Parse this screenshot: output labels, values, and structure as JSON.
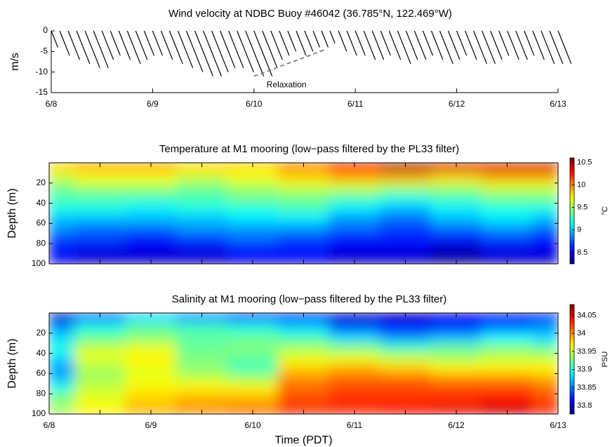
{
  "chart_data": [
    {
      "type": "stick",
      "title": "Wind velocity at NDBC Buoy #46042 (36.785°N, 122.469°W)",
      "ylabel": "m/s",
      "x": [
        0,
        2,
        4,
        6,
        8,
        10,
        12,
        14,
        16,
        18,
        20,
        22,
        24,
        26,
        28,
        30,
        32,
        34,
        36,
        38,
        40,
        42,
        44,
        46,
        48,
        50,
        52,
        54,
        56,
        58,
        60,
        62,
        64,
        66,
        68,
        70,
        72,
        74,
        76,
        78,
        80,
        82,
        84,
        86,
        88,
        90,
        92,
        94,
        96,
        98,
        100,
        102,
        104,
        106,
        108,
        110,
        112,
        114,
        116,
        118,
        120
      ],
      "u": [
        1.6,
        2.4,
        2.8,
        3.2,
        3.6,
        3.6,
        2.8,
        2.4,
        2.8,
        3.2,
        2.8,
        2.4,
        2.4,
        2.8,
        3.2,
        3.6,
        4,
        4.4,
        4.4,
        4,
        3.6,
        3.6,
        4,
        4.4,
        4.4,
        3.6,
        2.8,
        2.4,
        2,
        2.4,
        2,
        1.6,
        1.6,
        1.2,
        2,
        2.4,
        2.4,
        2.8,
        2.8,
        2.4,
        2.8,
        3.2,
        2.8,
        2.8,
        2.4,
        2.8,
        3.2,
        2.8,
        2.4,
        2.8,
        3.2,
        3.2,
        2.8,
        2.4,
        2.8,
        2.8,
        2.4,
        2.8,
        3.2,
        3.2,
        3.2
      ],
      "v": [
        -4,
        -6,
        -7,
        -8,
        -9,
        -9,
        -7,
        -6,
        -7,
        -8,
        -7,
        -6,
        -6,
        -7,
        -8,
        -9,
        -10,
        -11,
        -11,
        -10,
        -9,
        -9,
        -10,
        -11,
        -11,
        -9,
        -7,
        -6,
        -5,
        -6,
        -5,
        -4,
        -4,
        -3,
        -5,
        -6,
        -6,
        -7,
        -7,
        -6,
        -7,
        -8,
        -7,
        -7,
        -6,
        -7,
        -8,
        -7,
        -6,
        -7,
        -8,
        -8,
        -7,
        -6,
        -7,
        -7,
        -6,
        -7,
        -8,
        -8,
        -8
      ],
      "color": "#000000",
      "xlim": [
        0,
        120
      ],
      "ylim": [
        -15,
        0
      ],
      "xticks": [
        {
          "value": 0,
          "label": "6/8"
        },
        {
          "value": 24,
          "label": "6/9"
        },
        {
          "value": 48,
          "label": "6/10"
        },
        {
          "value": 72,
          "label": "6/11"
        },
        {
          "value": 96,
          "label": "6/12"
        },
        {
          "value": 120,
          "label": "6/13"
        }
      ],
      "yticks": [
        0,
        -5,
        -10,
        -15
      ],
      "box": false,
      "annotation": {
        "text": "Relaxation",
        "x": [
          48,
          65
        ],
        "y": [
          -11,
          -4.5
        ],
        "color": "#808080"
      }
    },
    {
      "type": "contour",
      "title": "Temperature at M1 mooring (low−pass filtered by the PL33 filter)",
      "ylabel": "Depth (m)",
      "x": [
        0,
        12,
        24,
        36,
        48,
        60,
        72,
        84,
        96,
        108,
        120
      ],
      "y": [
        5,
        15,
        25,
        35,
        45,
        55,
        65,
        75,
        85,
        100
      ],
      "z": [
        [
          9.8,
          9.9,
          9.9,
          9.8,
          9.8,
          10.0,
          10.3,
          10.5,
          10.4,
          10.4,
          10.4
        ],
        [
          9.6,
          9.7,
          9.7,
          9.6,
          9.7,
          9.8,
          9.9,
          9.9,
          9.8,
          9.9,
          9.9
        ],
        [
          9.4,
          9.5,
          9.5,
          9.4,
          9.5,
          9.6,
          9.6,
          9.5,
          9.5,
          9.6,
          9.6
        ],
        [
          9.3,
          9.3,
          9.3,
          9.3,
          9.4,
          9.4,
          9.3,
          9.2,
          9.3,
          9.4,
          9.4
        ],
        [
          9.2,
          9.2,
          9.1,
          9.2,
          9.2,
          9.3,
          9.1,
          9.0,
          9.1,
          9.2,
          9.2
        ],
        [
          9.0,
          9.0,
          9.0,
          9.0,
          9.1,
          9.1,
          8.9,
          8.8,
          9.0,
          9.1,
          9.0
        ],
        [
          8.9,
          8.8,
          8.8,
          8.9,
          8.9,
          8.9,
          8.8,
          8.7,
          8.8,
          8.9,
          8.8
        ],
        [
          8.7,
          8.7,
          8.6,
          8.7,
          8.8,
          8.7,
          8.6,
          8.6,
          8.6,
          8.7,
          8.6
        ],
        [
          8.6,
          8.5,
          8.5,
          8.5,
          8.6,
          8.6,
          8.5,
          8.5,
          8.4,
          8.5,
          8.5
        ],
        [
          8.5,
          8.4,
          8.4,
          8.4,
          8.5,
          8.5,
          8.4,
          8.4,
          8.3,
          8.4,
          8.4
        ]
      ],
      "colormap": "jet",
      "xlim": [
        0,
        120
      ],
      "ylim": [
        0,
        100
      ],
      "y_reversed": true,
      "xticks": [
        0,
        24,
        48,
        72,
        96,
        120
      ],
      "minor_xticks": [
        12,
        36,
        60,
        84,
        108
      ],
      "xtick_labels": false,
      "yticks": [
        20,
        40,
        60,
        80,
        100
      ],
      "box": true,
      "colorbar": {
        "label": "°C",
        "clim": [
          8.25,
          10.6
        ],
        "ticks": [
          8.5,
          9,
          9.5,
          10,
          10.5
        ]
      }
    },
    {
      "type": "contour",
      "title": "Salinity at M1 mooring (low−pass filtered by the PL33 filter)",
      "ylabel": "Depth (m)",
      "xlabel": "Time (PDT)",
      "x": [
        0,
        12,
        24,
        36,
        48,
        60,
        72,
        84,
        96,
        108,
        120
      ],
      "y": [
        5,
        15,
        25,
        35,
        45,
        55,
        65,
        75,
        85,
        100
      ],
      "z": [
        [
          33.8,
          33.85,
          33.88,
          33.86,
          33.84,
          33.83,
          33.8,
          33.8,
          33.81,
          33.82,
          33.83
        ],
        [
          33.86,
          33.9,
          33.92,
          33.91,
          33.9,
          33.88,
          33.84,
          33.82,
          33.83,
          33.85,
          33.86
        ],
        [
          33.88,
          33.92,
          33.93,
          33.92,
          33.92,
          33.91,
          33.88,
          33.86,
          33.87,
          33.89,
          33.88
        ],
        [
          33.9,
          33.95,
          33.96,
          33.92,
          33.93,
          33.94,
          33.93,
          33.91,
          33.92,
          33.93,
          33.92
        ],
        [
          33.88,
          33.96,
          33.97,
          33.93,
          33.92,
          33.96,
          33.96,
          33.95,
          33.94,
          33.95,
          33.95
        ],
        [
          33.86,
          33.94,
          33.96,
          33.93,
          33.91,
          33.98,
          33.99,
          33.98,
          33.97,
          33.97,
          33.97
        ],
        [
          33.87,
          33.94,
          33.96,
          33.95,
          33.94,
          34.0,
          34.01,
          34.01,
          34.0,
          34.0,
          33.99
        ],
        [
          33.9,
          33.95,
          33.97,
          33.97,
          33.97,
          34.01,
          34.02,
          34.02,
          34.02,
          34.02,
          34.01
        ],
        [
          33.93,
          33.96,
          33.98,
          33.99,
          33.99,
          34.02,
          34.03,
          34.03,
          34.03,
          34.04,
          34.02
        ],
        [
          33.94,
          33.97,
          33.99,
          34.0,
          34.01,
          34.03,
          34.03,
          34.04,
          34.05,
          34.06,
          34.04
        ]
      ],
      "colormap": "jet",
      "xlim": [
        0,
        120
      ],
      "ylim": [
        0,
        100
      ],
      "y_reversed": true,
      "xticks": [
        {
          "value": 0,
          "label": "6/8"
        },
        {
          "value": 24,
          "label": "6/9"
        },
        {
          "value": 48,
          "label": "6/10"
        },
        {
          "value": 72,
          "label": "6/11"
        },
        {
          "value": 96,
          "label": "6/12"
        },
        {
          "value": 120,
          "label": "6/13"
        }
      ],
      "minor_xticks": [
        12,
        36,
        60,
        84,
        108
      ],
      "xtick_labels": true,
      "yticks": [
        20,
        40,
        60,
        80,
        100
      ],
      "box": true,
      "colorbar": {
        "label": "PSU",
        "clim": [
          33.777,
          34.08
        ],
        "ticks": [
          33.8,
          33.85,
          33.9,
          33.95,
          34,
          34.05
        ]
      }
    }
  ]
}
